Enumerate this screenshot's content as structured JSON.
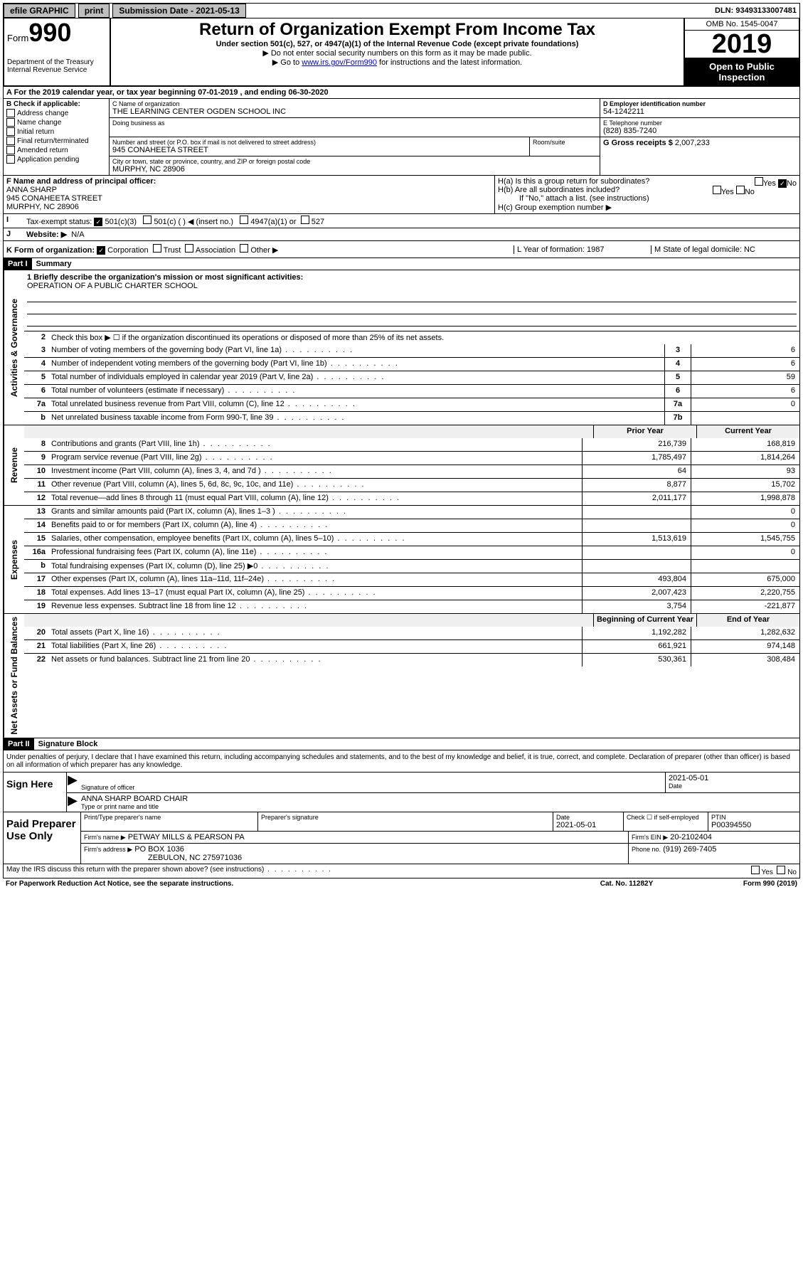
{
  "topbar": {
    "efile": "efile GRAPHIC",
    "print": "print",
    "subdate_label": "Submission Date - 2021-05-13",
    "dln": "DLN: 93493133007481"
  },
  "header": {
    "form_word": "Form",
    "form_num": "990",
    "title": "Return of Organization Exempt From Income Tax",
    "sub1": "Under section 501(c), 527, or 4947(a)(1) of the Internal Revenue Code (except private foundations)",
    "note1": "▶ Do not enter social security numbers on this form as it may be made public.",
    "note2a": "▶ Go to ",
    "note2_link": "www.irs.gov/Form990",
    "note2b": " for instructions and the latest information.",
    "dept": "Department of the Treasury\nInternal Revenue Service",
    "omb": "OMB No. 1545-0047",
    "year": "2019",
    "open": "Open to Public Inspection"
  },
  "row_a": "A For the 2019 calendar year, or tax year beginning 07-01-2019     , and ending 06-30-2020",
  "box_b": {
    "label": "B Check if applicable:",
    "opts": [
      "Address change",
      "Name change",
      "Initial return",
      "Final return/terminated",
      "Amended return",
      "Application pending"
    ]
  },
  "box_c": {
    "name_label": "C Name of organization",
    "name": "THE LEARNING CENTER OGDEN SCHOOL INC",
    "dba_label": "Doing business as",
    "street_label": "Number and street (or P.O. box if mail is not delivered to street address)",
    "street": "945 CONAHEETA STREET",
    "room_label": "Room/suite",
    "city_label": "City or town, state or province, country, and ZIP or foreign postal code",
    "city": "MURPHY, NC  28906"
  },
  "box_d": {
    "label": "D Employer identification number",
    "val": "54-1242211"
  },
  "box_e": {
    "label": "E Telephone number",
    "val": "(828) 835-7240"
  },
  "box_g": {
    "label": "G Gross receipts $",
    "val": "2,007,233"
  },
  "box_f": {
    "label": "F  Name and address of principal officer:",
    "name": "ANNA SHARP",
    "addr": "945 CONAHEETA STREET\nMURPHY, NC  28906"
  },
  "box_h": {
    "a": "H(a)  Is this a group return for subordinates?",
    "b": "H(b)  Are all subordinates included?",
    "b_note": "If \"No,\" attach a list. (see instructions)",
    "c": "H(c)  Group exemption number ▶",
    "yes": "Yes",
    "no": "No"
  },
  "row_i": {
    "label": "Tax-exempt status:",
    "opts": [
      "501(c)(3)",
      "501(c) (  ) ◀ (insert no.)",
      "4947(a)(1) or",
      "527"
    ]
  },
  "row_j": {
    "label": "Website: ▶",
    "val": "N/A"
  },
  "row_k": {
    "label": "K Form of organization:",
    "opts": [
      "Corporation",
      "Trust",
      "Association",
      "Other ▶"
    ],
    "l": "L Year of formation: 1987",
    "m": "M State of legal domicile: NC"
  },
  "part1": {
    "hdr": "Part I",
    "title": "Summary"
  },
  "mission_label": "1  Briefly describe the organization's mission or most significant activities:",
  "mission": "OPERATION OF A PUBLIC CHARTER SCHOOL",
  "line2": "Check this box ▶ ☐  if the organization discontinued its operations or disposed of more than 25% of its net assets.",
  "lines_gov": [
    {
      "n": "3",
      "t": "Number of voting members of the governing body (Part VI, line 1a)",
      "b": "3",
      "v": "6"
    },
    {
      "n": "4",
      "t": "Number of independent voting members of the governing body (Part VI, line 1b)",
      "b": "4",
      "v": "6"
    },
    {
      "n": "5",
      "t": "Total number of individuals employed in calendar year 2019 (Part V, line 2a)",
      "b": "5",
      "v": "59"
    },
    {
      "n": "6",
      "t": "Total number of volunteers (estimate if necessary)",
      "b": "6",
      "v": "6"
    },
    {
      "n": "7a",
      "t": "Total unrelated business revenue from Part VIII, column (C), line 12",
      "b": "7a",
      "v": "0"
    },
    {
      "n": "b",
      "t": "Net unrelated business taxable income from Form 990-T, line 39",
      "b": "7b",
      "v": ""
    }
  ],
  "col_hdrs": {
    "prior": "Prior Year",
    "current": "Current Year"
  },
  "lines_rev": [
    {
      "n": "8",
      "t": "Contributions and grants (Part VIII, line 1h)",
      "p": "216,739",
      "c": "168,819"
    },
    {
      "n": "9",
      "t": "Program service revenue (Part VIII, line 2g)",
      "p": "1,785,497",
      "c": "1,814,264"
    },
    {
      "n": "10",
      "t": "Investment income (Part VIII, column (A), lines 3, 4, and 7d )",
      "p": "64",
      "c": "93"
    },
    {
      "n": "11",
      "t": "Other revenue (Part VIII, column (A), lines 5, 6d, 8c, 9c, 10c, and 11e)",
      "p": "8,877",
      "c": "15,702"
    },
    {
      "n": "12",
      "t": "Total revenue—add lines 8 through 11 (must equal Part VIII, column (A), line 12)",
      "p": "2,011,177",
      "c": "1,998,878"
    }
  ],
  "lines_exp": [
    {
      "n": "13",
      "t": "Grants and similar amounts paid (Part IX, column (A), lines 1–3 )",
      "p": "",
      "c": "0"
    },
    {
      "n": "14",
      "t": "Benefits paid to or for members (Part IX, column (A), line 4)",
      "p": "",
      "c": "0"
    },
    {
      "n": "15",
      "t": "Salaries, other compensation, employee benefits (Part IX, column (A), lines 5–10)",
      "p": "1,513,619",
      "c": "1,545,755"
    },
    {
      "n": "16a",
      "t": "Professional fundraising fees (Part IX, column (A), line 11e)",
      "p": "",
      "c": "0"
    },
    {
      "n": "b",
      "t": "Total fundraising expenses (Part IX, column (D), line 25) ▶0",
      "p": "",
      "c": ""
    },
    {
      "n": "17",
      "t": "Other expenses (Part IX, column (A), lines 11a–11d, 11f–24e)",
      "p": "493,804",
      "c": "675,000"
    },
    {
      "n": "18",
      "t": "Total expenses. Add lines 13–17 (must equal Part IX, column (A), line 25)",
      "p": "2,007,423",
      "c": "2,220,755"
    },
    {
      "n": "19",
      "t": "Revenue less expenses. Subtract line 18 from line 12",
      "p": "3,754",
      "c": "-221,877"
    }
  ],
  "col_hdrs2": {
    "begin": "Beginning of Current Year",
    "end": "End of Year"
  },
  "lines_net": [
    {
      "n": "20",
      "t": "Total assets (Part X, line 16)",
      "p": "1,192,282",
      "c": "1,282,632"
    },
    {
      "n": "21",
      "t": "Total liabilities (Part X, line 26)",
      "p": "661,921",
      "c": "974,148"
    },
    {
      "n": "22",
      "t": "Net assets or fund balances. Subtract line 21 from line 20",
      "p": "530,361",
      "c": "308,484"
    }
  ],
  "vtabs": {
    "gov": "Activities & Governance",
    "rev": "Revenue",
    "exp": "Expenses",
    "net": "Net Assets or Fund Balances"
  },
  "part2": {
    "hdr": "Part II",
    "title": "Signature Block"
  },
  "perjury": "Under penalties of perjury, I declare that I have examined this return, including accompanying schedules and statements, and to the best of my knowledge and belief, it is true, correct, and complete. Declaration of preparer (other than officer) is based on all information of which preparer has any knowledge.",
  "sign": {
    "here": "Sign Here",
    "sig_label": "Signature of officer",
    "date_label": "Date",
    "date": "2021-05-01",
    "name": "ANNA SHARP  BOARD CHAIR",
    "name_label": "Type or print name and title"
  },
  "paid": {
    "title": "Paid Preparer Use Only",
    "h1": "Print/Type preparer's name",
    "h2": "Preparer's signature",
    "h3": "Date",
    "date": "2021-05-01",
    "h4": "Check ☐ if self-employed",
    "h5": "PTIN",
    "ptin": "P00394550",
    "firm_label": "Firm's name      ▶",
    "firm": "PETWAY MILLS & PEARSON PA",
    "ein_label": "Firm's EIN ▶",
    "ein": "20-2102404",
    "addr_label": "Firm's address ▶",
    "addr": "PO BOX 1036",
    "addr2": "ZEBULON, NC  275971036",
    "phone_label": "Phone no.",
    "phone": "(919) 269-7405"
  },
  "footer": {
    "discuss": "May the IRS discuss this return with the preparer shown above? (see instructions)",
    "yes": "Yes",
    "no": "No",
    "paperwork": "For Paperwork Reduction Act Notice, see the separate instructions.",
    "cat": "Cat. No. 11282Y",
    "form": "Form 990 (2019)"
  }
}
